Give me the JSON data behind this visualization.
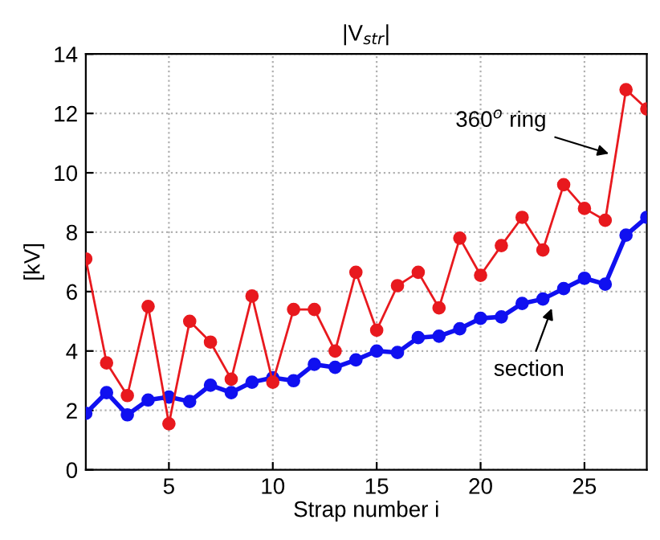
{
  "chart_data": {
    "type": "line",
    "title": "|V$_{str}$|",
    "xlabel": "Strap number i",
    "ylabel": "[kV]",
    "x": [
      1,
      2,
      3,
      4,
      5,
      6,
      7,
      8,
      9,
      10,
      11,
      12,
      13,
      14,
      15,
      16,
      17,
      18,
      19,
      20,
      21,
      22,
      23,
      24,
      25,
      26,
      27,
      28
    ],
    "series": [
      {
        "name": "360$^{o}$ ring",
        "color": "#e8191e",
        "values": [
          7.1,
          3.6,
          2.5,
          5.5,
          1.55,
          5.0,
          4.3,
          3.05,
          5.85,
          2.95,
          5.4,
          5.4,
          4.0,
          6.65,
          4.7,
          6.2,
          6.65,
          5.45,
          7.8,
          6.55,
          7.55,
          8.5,
          7.4,
          9.6,
          8.8,
          8.4,
          12.8,
          12.15
        ]
      },
      {
        "name": "section",
        "color": "#1010f0",
        "values": [
          1.9,
          2.6,
          1.85,
          2.35,
          2.45,
          2.3,
          2.85,
          2.6,
          2.95,
          3.1,
          3.0,
          3.55,
          3.45,
          3.7,
          4.0,
          3.95,
          4.45,
          4.5,
          4.75,
          5.1,
          5.15,
          5.6,
          5.75,
          6.1,
          6.45,
          6.25,
          7.9,
          8.5
        ]
      }
    ],
    "xlim": [
      1,
      28
    ],
    "xticks": [
      5,
      10,
      15,
      20,
      25
    ],
    "ylim": [
      0,
      14
    ],
    "yticks": [
      0,
      2,
      4,
      6,
      8,
      10,
      12,
      14
    ],
    "grid": true,
    "marker": "circle",
    "line_style": "solid",
    "legend": false
  }
}
